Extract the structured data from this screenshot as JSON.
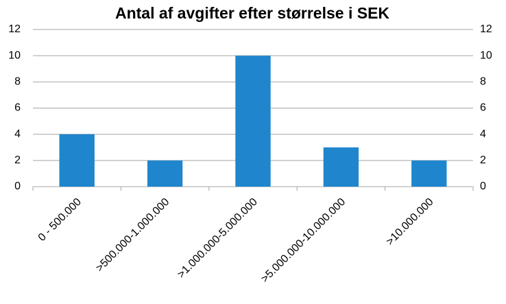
{
  "chart_data": {
    "type": "bar",
    "title": "Antal af avgifter efter størrelse i SEK",
    "categories": [
      "0 - 500.000",
      ">500.000-1.000.000",
      ">1.000.000-5.000.000",
      ">5.000.000-10.000.000",
      ">10.000.000"
    ],
    "values": [
      4,
      2,
      10,
      3,
      2
    ],
    "color": "#1f86cd",
    "ylim": [
      0,
      12
    ],
    "yticks": [
      0,
      2,
      4,
      6,
      8,
      10,
      12
    ],
    "y2lim": [
      0,
      12
    ],
    "y2ticks": [
      0,
      2,
      4,
      6,
      8,
      10,
      12
    ],
    "grid": true
  }
}
